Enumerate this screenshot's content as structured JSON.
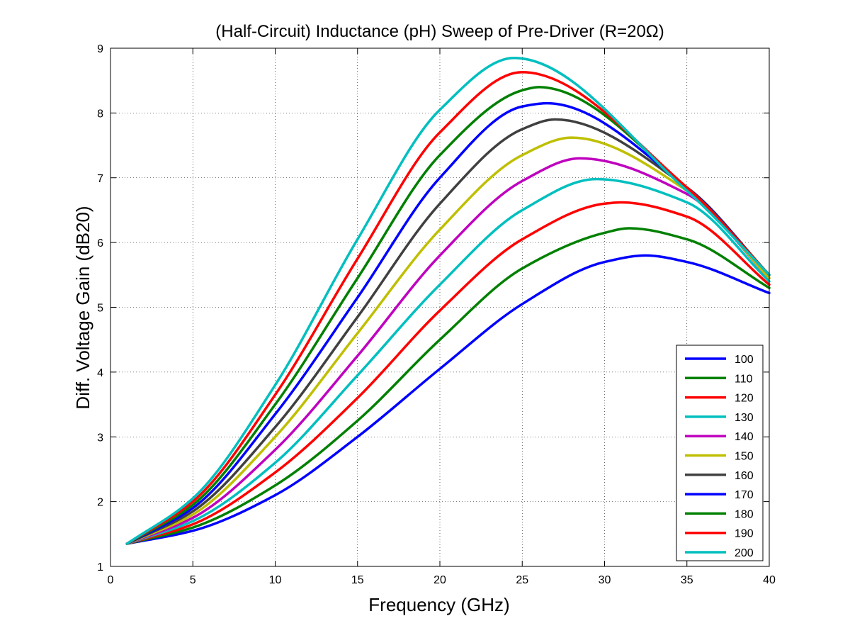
{
  "chart_data": {
    "type": "line",
    "title": "(Half-Circuit) Inductance (pH) Sweep of Pre-Driver (R=20Ω)",
    "xlabel": "Frequency (GHz)",
    "ylabel": "Diff. Voltage Gain (dB20)",
    "xlim": [
      0,
      40
    ],
    "ylim": [
      1,
      9
    ],
    "xticks": [
      0,
      5,
      10,
      15,
      20,
      25,
      30,
      35,
      40
    ],
    "yticks": [
      1,
      2,
      3,
      4,
      5,
      6,
      7,
      8,
      9
    ],
    "grid": true,
    "legend_position": "bottom-right",
    "series": [
      {
        "name": "100",
        "color": "#0000ff",
        "x": [
          1,
          5,
          10,
          15,
          20,
          25,
          30,
          32.5,
          35,
          40
        ],
        "y": [
          1.35,
          1.55,
          2.1,
          3.0,
          4.05,
          5.05,
          5.7,
          5.8,
          5.7,
          5.22
        ]
      },
      {
        "name": "110",
        "color": "#008000",
        "x": [
          1,
          5,
          10,
          15,
          20,
          25,
          30,
          31.5,
          35,
          40
        ],
        "y": [
          1.35,
          1.6,
          2.25,
          3.25,
          4.5,
          5.6,
          6.15,
          6.22,
          6.05,
          5.3
        ]
      },
      {
        "name": "120",
        "color": "#ff0000",
        "x": [
          1,
          5,
          10,
          15,
          20,
          25,
          30,
          31,
          35,
          40
        ],
        "y": [
          1.35,
          1.65,
          2.45,
          3.6,
          4.95,
          6.05,
          6.6,
          6.62,
          6.4,
          5.35
        ]
      },
      {
        "name": "130",
        "color": "#00bfbf",
        "x": [
          1,
          5,
          10,
          15,
          20,
          25,
          29.5,
          35,
          40
        ],
        "y": [
          1.35,
          1.7,
          2.6,
          3.95,
          5.35,
          6.5,
          6.98,
          6.62,
          5.4
        ]
      },
      {
        "name": "140",
        "color": "#bf00bf",
        "x": [
          1,
          5,
          10,
          15,
          20,
          25,
          28.5,
          35,
          40
        ],
        "y": [
          1.35,
          1.75,
          2.8,
          4.25,
          5.8,
          6.95,
          7.3,
          6.75,
          5.45
        ]
      },
      {
        "name": "150",
        "color": "#bfbf00",
        "x": [
          1,
          5,
          10,
          15,
          20,
          25,
          28,
          35,
          40
        ],
        "y": [
          1.35,
          1.8,
          3.0,
          4.6,
          6.2,
          7.35,
          7.62,
          6.8,
          5.45
        ]
      },
      {
        "name": "160",
        "color": "#404040",
        "x": [
          1,
          5,
          10,
          15,
          20,
          25,
          27,
          35,
          40
        ],
        "y": [
          1.35,
          1.85,
          3.15,
          4.85,
          6.6,
          7.75,
          7.9,
          6.85,
          5.5
        ]
      },
      {
        "name": "170",
        "color": "#0000ff",
        "x": [
          1,
          5,
          10,
          15,
          20,
          25,
          26.5,
          35,
          40
        ],
        "y": [
          1.35,
          1.9,
          3.35,
          5.15,
          7.0,
          8.1,
          8.15,
          6.85,
          5.5
        ]
      },
      {
        "name": "180",
        "color": "#008000",
        "x": [
          1,
          5,
          10,
          15,
          20,
          25,
          26,
          35,
          40
        ],
        "y": [
          1.35,
          1.95,
          3.5,
          5.45,
          7.35,
          8.35,
          8.4,
          6.85,
          5.5
        ]
      },
      {
        "name": "190",
        "color": "#ff0000",
        "x": [
          1,
          5,
          10,
          15,
          20,
          25,
          35,
          40
        ],
        "y": [
          1.35,
          2.0,
          3.65,
          5.75,
          7.7,
          8.63,
          6.85,
          5.5
        ]
      },
      {
        "name": "200",
        "color": "#00bfbf",
        "x": [
          1,
          5,
          10,
          15,
          20,
          24.5,
          35,
          40
        ],
        "y": [
          1.35,
          2.05,
          3.8,
          6.05,
          8.05,
          8.85,
          6.8,
          5.5
        ]
      }
    ]
  }
}
